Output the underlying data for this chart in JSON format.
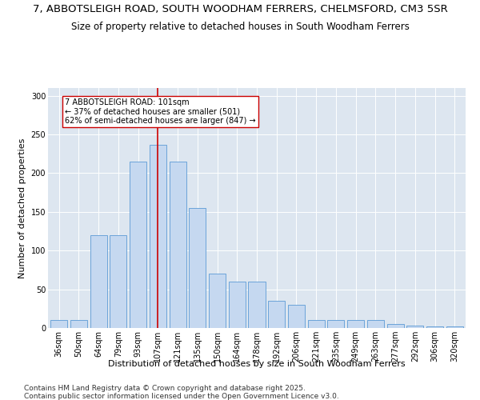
{
  "title_line1": "7, ABBOTSLEIGH ROAD, SOUTH WOODHAM FERRERS, CHELMSFORD, CM3 5SR",
  "title_line2": "Size of property relative to detached houses in South Woodham Ferrers",
  "xlabel": "Distribution of detached houses by size in South Woodham Ferrers",
  "ylabel": "Number of detached properties",
  "categories": [
    "36sqm",
    "50sqm",
    "64sqm",
    "79sqm",
    "93sqm",
    "107sqm",
    "121sqm",
    "135sqm",
    "150sqm",
    "164sqm",
    "178sqm",
    "192sqm",
    "206sqm",
    "221sqm",
    "235sqm",
    "249sqm",
    "263sqm",
    "277sqm",
    "292sqm",
    "306sqm",
    "320sqm"
  ],
  "values": [
    10,
    10,
    120,
    120,
    215,
    237,
    215,
    155,
    70,
    60,
    60,
    35,
    30,
    10,
    10,
    10,
    10,
    5,
    3,
    2,
    2
  ],
  "bar_color": "#c5d8f0",
  "bar_edge_color": "#5b9bd5",
  "vline_x_index": 5,
  "vline_color": "#cc0000",
  "annotation_text": "7 ABBOTSLEIGH ROAD: 101sqm\n← 37% of detached houses are smaller (501)\n62% of semi-detached houses are larger (847) →",
  "annotation_box_color": "#ffffff",
  "annotation_box_edge_color": "#cc0000",
  "ylim": [
    0,
    310
  ],
  "yticks": [
    0,
    50,
    100,
    150,
    200,
    250,
    300
  ],
  "background_color": "#dde6f0",
  "footer_text": "Contains HM Land Registry data © Crown copyright and database right 2025.\nContains public sector information licensed under the Open Government Licence v3.0.",
  "title_fontsize": 9.5,
  "subtitle_fontsize": 8.5,
  "axis_label_fontsize": 8,
  "tick_fontsize": 7,
  "annotation_fontsize": 7,
  "footer_fontsize": 6.5
}
